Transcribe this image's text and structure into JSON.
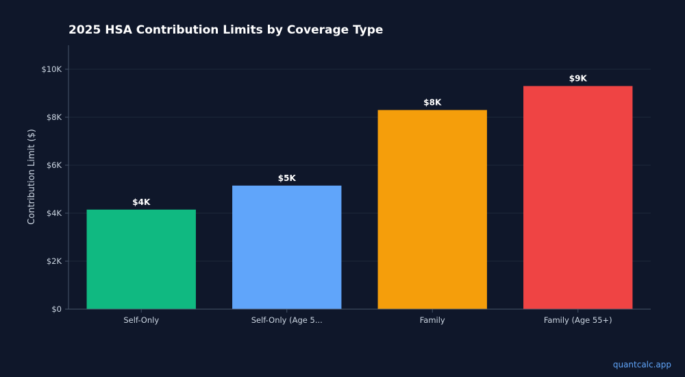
{
  "chart_data": {
    "type": "bar",
    "title": "2025 HSA Contribution Limits by Coverage Type",
    "xlabel": "",
    "ylabel": "Contribution Limit ($)",
    "categories": [
      "Self-Only",
      "Self-Only (Age 5...",
      "Family",
      "Family (Age 55+)"
    ],
    "values": [
      4150,
      5150,
      8300,
      9300
    ],
    "data_labels": [
      "$4K",
      "$5K",
      "$8K",
      "$9K"
    ],
    "colors": [
      "#10b981",
      "#60a5fa",
      "#f59e0b",
      "#ef4444"
    ],
    "ylim": [
      0,
      11000
    ],
    "yticks": [
      0,
      2000,
      4000,
      6000,
      8000,
      10000
    ],
    "ytick_labels": [
      "$0",
      "$2K",
      "$4K",
      "$6K",
      "$8K",
      "$10K"
    ],
    "grid": true,
    "legend": "none"
  },
  "footer": {
    "watermark": "quantcalc.app"
  },
  "theme": {
    "background": "#0f172a",
    "text": "#ffffff",
    "tick_text": "#cbd5e1",
    "axis_color": "#475569",
    "grid_color": "#1e293b",
    "watermark_color": "#60a5fa"
  }
}
